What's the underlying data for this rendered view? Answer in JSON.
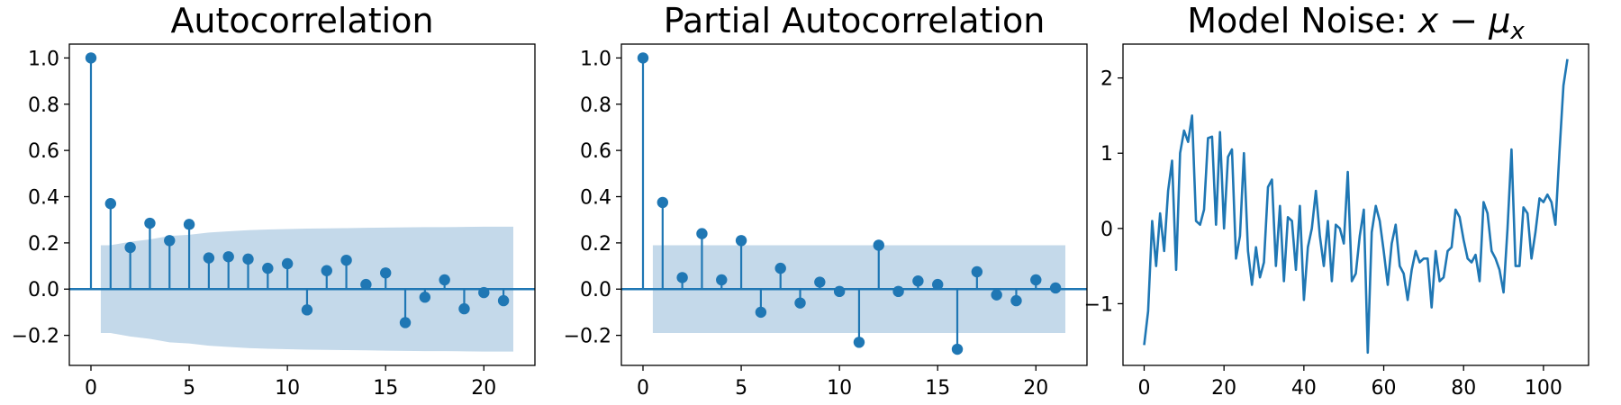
{
  "colors": {
    "series": "#1f77b4",
    "band": "#c4d9ea",
    "axis": "#000000"
  },
  "chart_data": [
    {
      "type": "stem",
      "title": "Autocorrelation",
      "xlim": [
        -1.1,
        22.6
      ],
      "ylim": [
        -0.33,
        1.06
      ],
      "xticks": [
        0,
        5,
        10,
        15,
        20
      ],
      "yticks": [
        -0.2,
        0.0,
        0.2,
        0.4,
        0.6,
        0.8,
        1.0
      ],
      "ytick_labels": [
        "−0.2",
        "0.0",
        "0.2",
        "0.4",
        "0.6",
        "0.8",
        "1.0"
      ],
      "lags": [
        0,
        1,
        2,
        3,
        4,
        5,
        6,
        7,
        8,
        9,
        10,
        11,
        12,
        13,
        14,
        15,
        16,
        17,
        18,
        19,
        20,
        21
      ],
      "values": [
        1.0,
        0.37,
        0.18,
        0.285,
        0.21,
        0.28,
        0.135,
        0.14,
        0.13,
        0.09,
        0.11,
        -0.09,
        0.08,
        0.125,
        0.02,
        0.07,
        -0.145,
        -0.035,
        0.04,
        -0.085,
        -0.015,
        -0.05
      ],
      "confidence_band": {
        "x": [
          0.5,
          1,
          2,
          3,
          4,
          5,
          6,
          7,
          8,
          9,
          10,
          11,
          12,
          13,
          14,
          15,
          16,
          17,
          18,
          19,
          20,
          21,
          21.5
        ],
        "upper": [
          0.19,
          0.19,
          0.205,
          0.215,
          0.23,
          0.235,
          0.245,
          0.25,
          0.255,
          0.258,
          0.26,
          0.262,
          0.263,
          0.264,
          0.265,
          0.266,
          0.267,
          0.268,
          0.268,
          0.269,
          0.27,
          0.27,
          0.27
        ]
      }
    },
    {
      "type": "stem",
      "title": "Partial Autocorrelation",
      "xlim": [
        -1.1,
        22.6
      ],
      "ylim": [
        -0.33,
        1.06
      ],
      "xticks": [
        0,
        5,
        10,
        15,
        20
      ],
      "yticks": [
        -0.2,
        0.0,
        0.2,
        0.4,
        0.6,
        0.8,
        1.0
      ],
      "ytick_labels": [
        "−0.2",
        "0.0",
        "0.2",
        "0.4",
        "0.6",
        "0.8",
        "1.0"
      ],
      "lags": [
        0,
        1,
        2,
        3,
        4,
        5,
        6,
        7,
        8,
        9,
        10,
        11,
        12,
        13,
        14,
        15,
        16,
        17,
        18,
        19,
        20,
        21
      ],
      "values": [
        1.0,
        0.375,
        0.05,
        0.24,
        0.04,
        0.21,
        -0.1,
        0.09,
        -0.06,
        0.03,
        -0.01,
        -0.23,
        0.19,
        -0.01,
        0.035,
        0.02,
        -0.26,
        0.075,
        -0.025,
        -0.05,
        0.04,
        0.005
      ],
      "confidence_band": {
        "x": [
          0.5,
          21.5
        ],
        "upper": [
          0.19,
          0.19
        ]
      }
    },
    {
      "type": "line",
      "title": "Model Noise:",
      "title_math": "x − μ",
      "title_math_sub": "x",
      "xlim": [
        -5.3,
        111.3
      ],
      "ylim": [
        -1.82,
        2.45
      ],
      "xticks": [
        0,
        20,
        40,
        60,
        80,
        100
      ],
      "yticks": [
        -1,
        0,
        1,
        2
      ],
      "ytick_labels": [
        "−1",
        "0",
        "1",
        "2"
      ],
      "x": [
        0,
        1,
        2,
        3,
        4,
        5,
        6,
        7,
        8,
        9,
        10,
        11,
        12,
        13,
        14,
        15,
        16,
        17,
        18,
        19,
        20,
        21,
        22,
        23,
        24,
        25,
        26,
        27,
        28,
        29,
        30,
        31,
        32,
        33,
        34,
        35,
        36,
        37,
        38,
        39,
        40,
        41,
        42,
        43,
        44,
        45,
        46,
        47,
        48,
        49,
        50,
        51,
        52,
        53,
        54,
        55,
        56,
        57,
        58,
        59,
        60,
        61,
        62,
        63,
        64,
        65,
        66,
        67,
        68,
        69,
        70,
        71,
        72,
        73,
        74,
        75,
        76,
        77,
        78,
        79,
        80,
        81,
        82,
        83,
        84,
        85,
        86,
        87,
        88,
        89,
        90,
        91,
        92,
        93,
        94,
        95,
        96,
        97,
        98,
        99,
        100,
        101,
        102,
        103,
        104,
        105,
        106
      ],
      "y": [
        -1.55,
        -1.1,
        0.1,
        -0.5,
        0.2,
        -0.3,
        0.5,
        0.9,
        -0.55,
        1.0,
        1.3,
        1.15,
        1.5,
        0.1,
        0.05,
        0.25,
        1.2,
        1.22,
        0.05,
        1.28,
        0.0,
        0.95,
        1.05,
        -0.4,
        -0.1,
        1.0,
        -0.3,
        -0.75,
        -0.25,
        -0.65,
        -0.45,
        0.55,
        0.65,
        -0.5,
        0.3,
        -0.7,
        0.15,
        0.1,
        -0.55,
        0.3,
        -0.95,
        -0.25,
        0.0,
        0.5,
        -0.1,
        -0.5,
        0.1,
        -0.7,
        0.05,
        0.0,
        -0.2,
        0.75,
        -0.7,
        -0.6,
        -0.1,
        0.25,
        -1.65,
        -0.05,
        0.3,
        0.1,
        -0.3,
        -0.75,
        -0.2,
        0.05,
        -0.5,
        -0.6,
        -0.95,
        -0.55,
        -0.3,
        -0.45,
        -0.4,
        -0.4,
        -1.05,
        -0.3,
        -0.7,
        -0.65,
        -0.3,
        -0.25,
        0.25,
        0.15,
        -0.15,
        -0.4,
        -0.45,
        -0.35,
        -0.7,
        0.35,
        0.2,
        -0.3,
        -0.4,
        -0.55,
        -0.85,
        0.0,
        1.05,
        -0.5,
        -0.5,
        0.28,
        0.2,
        -0.4,
        -0.05,
        0.4,
        0.35,
        0.45,
        0.35,
        0.05,
        1.0,
        1.9,
        2.25
      ]
    }
  ]
}
